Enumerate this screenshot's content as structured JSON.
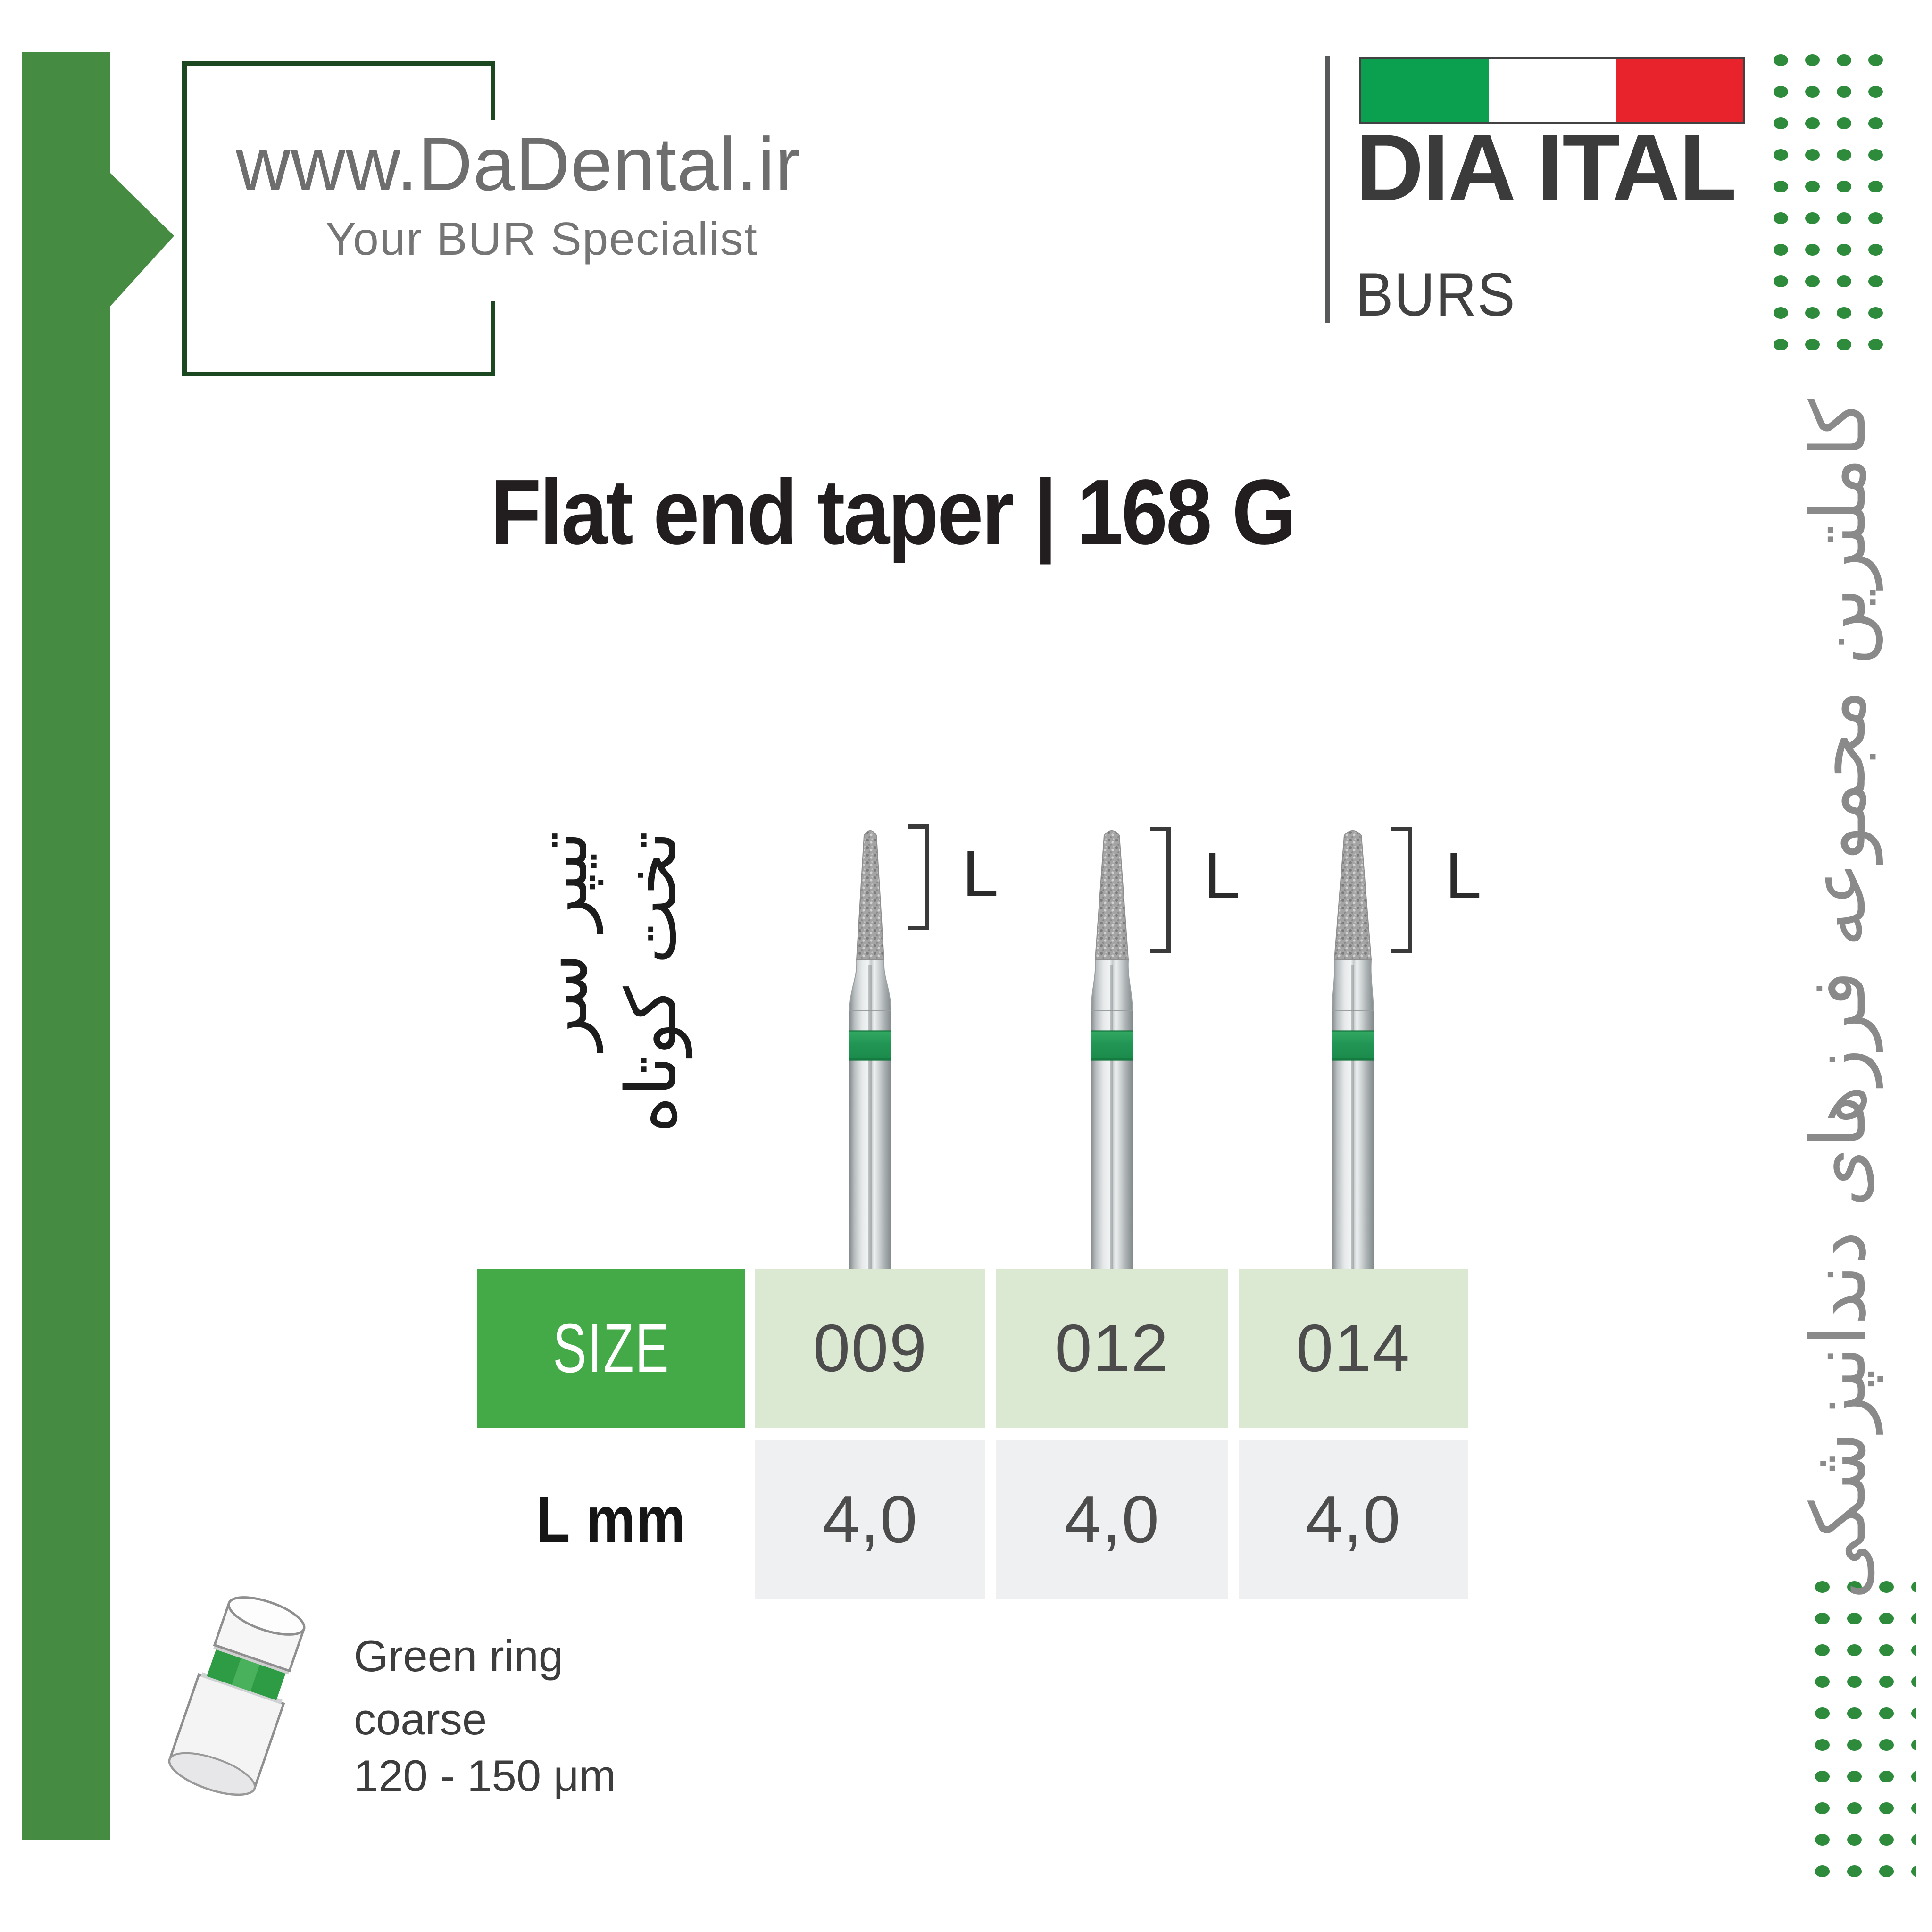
{
  "header": {
    "site": "www.DaDental.ir",
    "tagline": "Your BUR Specialist",
    "brand": "DIA ITAL",
    "brand_sub": "BURS"
  },
  "title": "Flat end taper | 168 G",
  "product_fa": {
    "line1": "تیپر سر",
    "line2": "تخت کوتاه"
  },
  "side_fa": "کاملترین مجموعه فرزهای دندانپزشکی",
  "length_label": "L",
  "table": {
    "size_label": "SIZE",
    "sizes": [
      "009",
      "012",
      "014"
    ],
    "length_row_label": "L mm",
    "lengths": [
      "4,0",
      "4,0",
      "4,0"
    ]
  },
  "legend": {
    "line1": "Green ring",
    "line2": "coarse",
    "line3": "120 - 150 μm"
  },
  "colors": {
    "accent": "#44aa47",
    "cell_green": "#dbe8d2",
    "cell_gray": "#eff0f2",
    "bar_green": "#458b41",
    "box_green": "#1b4721",
    "dot_green": "#2e8b3c",
    "flag_green": "#0aa050",
    "flag_red": "#e8232b",
    "band_green": "#28a05a",
    "text_dark": "#221e1f",
    "text_gray": "#6e6e6e",
    "text_mid": "#3b3b3b",
    "side_gray": "#8a8a8a"
  }
}
